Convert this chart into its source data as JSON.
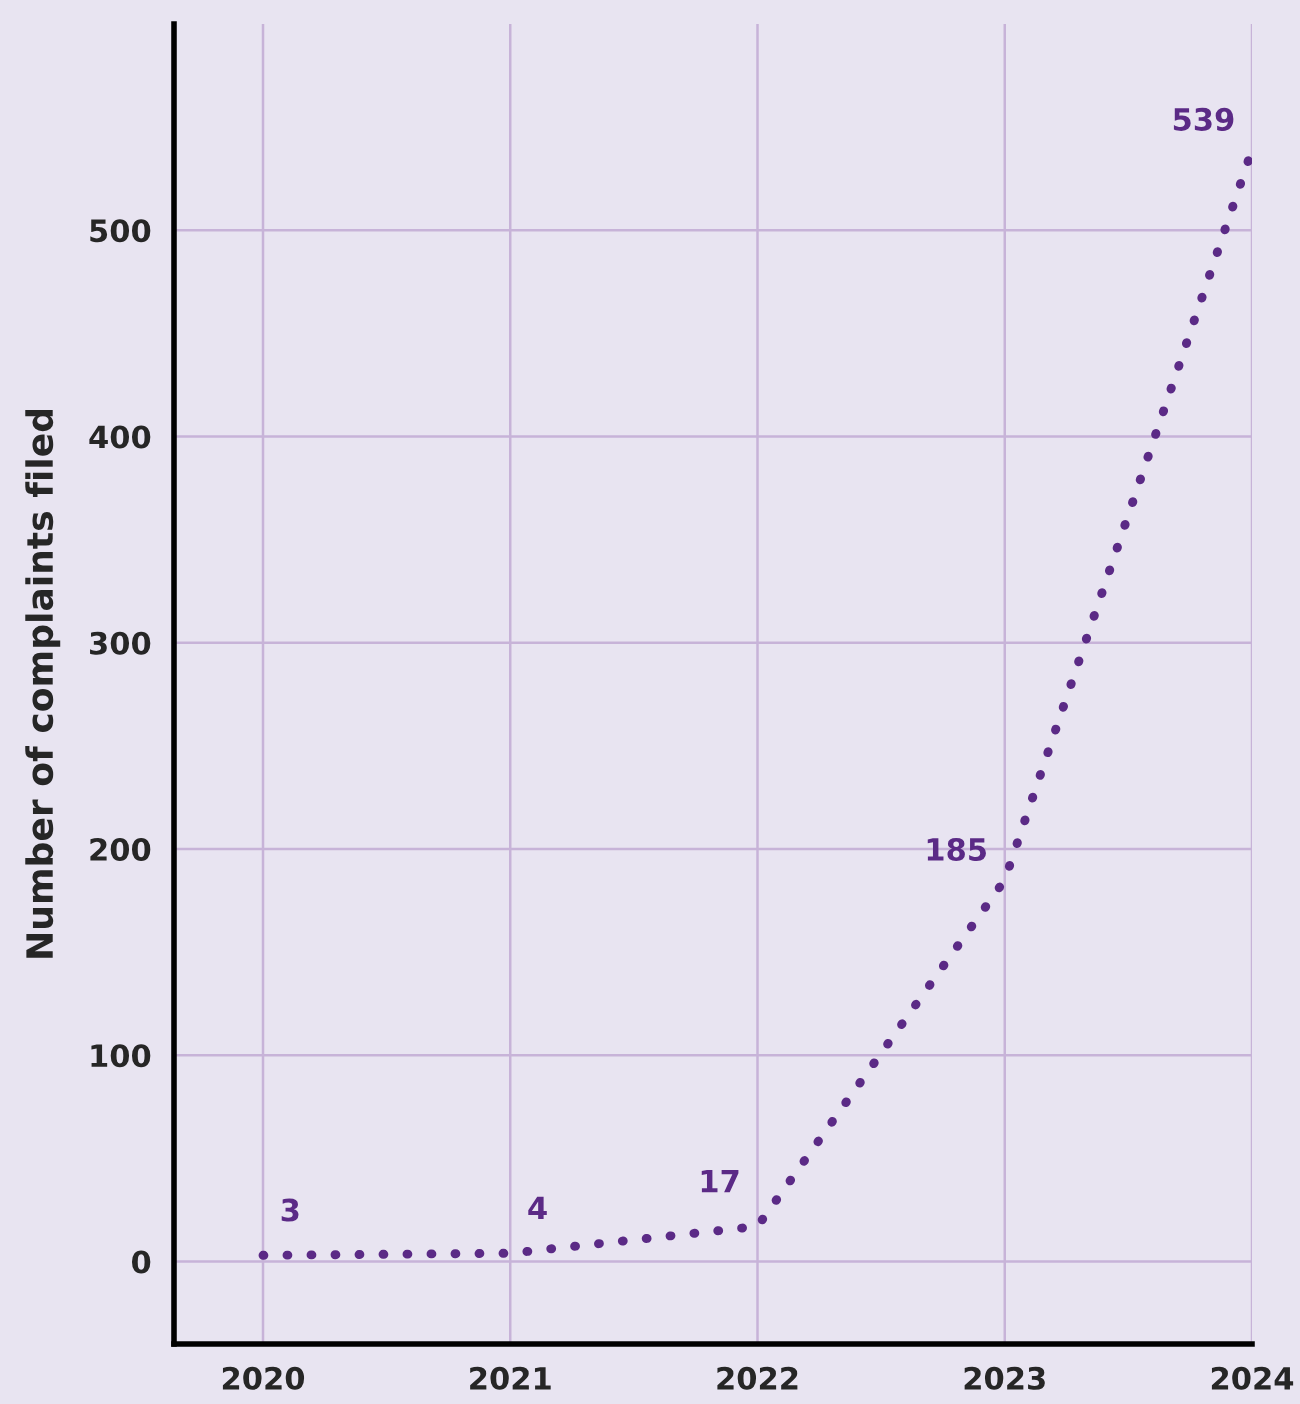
{
  "chart_data": {
    "type": "line",
    "ylabel": "Number of complaints filed",
    "x": [
      2020,
      2021,
      2022,
      2023,
      2024
    ],
    "series": [
      {
        "color": "#5b2a86",
        "values": [
          3,
          4,
          17,
          185,
          539
        ]
      }
    ],
    "xlim": [
      2019.64,
      2024.0
    ],
    "xticks": [
      2020,
      2021,
      2022,
      2023,
      2024
    ],
    "ylim": [
      -40,
      600
    ],
    "yticks": [
      0,
      100,
      200,
      300,
      400,
      500
    ],
    "grid": true,
    "line_style": "dotted",
    "data_labels": true
  }
}
